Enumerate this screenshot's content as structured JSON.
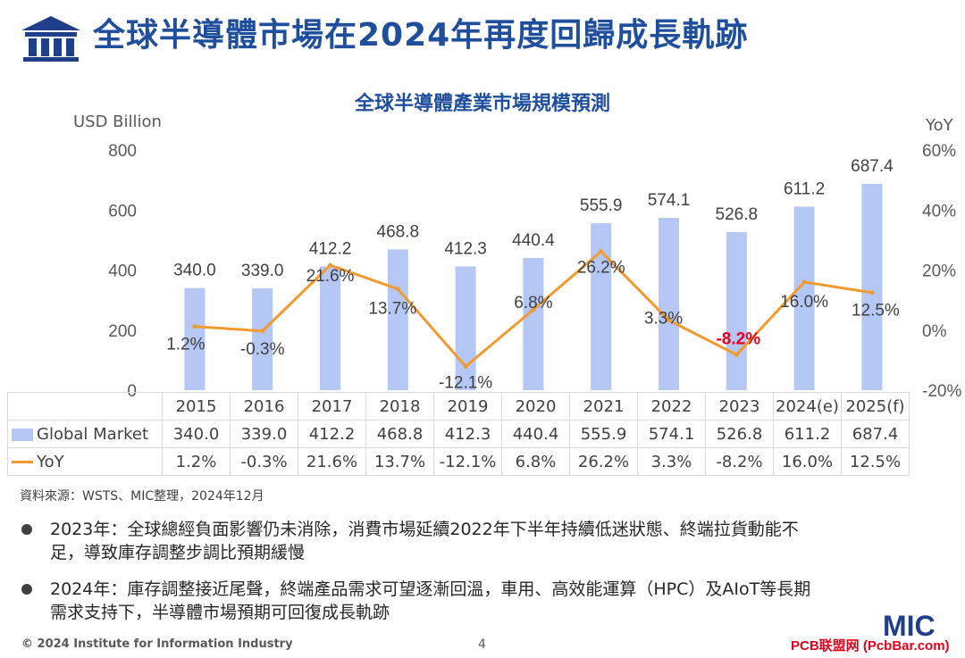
{
  "header": {
    "title": "全球半導體市場在2024年再度回歸成長軌跡"
  },
  "chart_data": {
    "type": "bar",
    "title": "全球半導體產業市場規模預測",
    "y_left_label": "USD Billion",
    "y_right_label": "YoY",
    "y_left_range": [
      0,
      800
    ],
    "y_left_ticks": [
      "0",
      "200",
      "400",
      "600",
      "800"
    ],
    "y_right_range": [
      -20,
      60
    ],
    "y_right_ticks": [
      "-20%",
      "0%",
      "20%",
      "40%",
      "60%"
    ],
    "categories": [
      "2015",
      "2016",
      "2017",
      "2018",
      "2019",
      "2020",
      "2021",
      "2022",
      "2023",
      "2024(e)",
      "2025(f)"
    ],
    "series": [
      {
        "name": "Global Market",
        "type": "bar",
        "axis": "left",
        "color": "#b4c7f5",
        "values": [
          340.0,
          339.0,
          412.2,
          468.8,
          412.3,
          440.4,
          555.9,
          574.1,
          526.8,
          611.2,
          687.4
        ],
        "labels": [
          "340.0",
          "339.0",
          "412.2",
          "468.8",
          "412.3",
          "440.4",
          "555.9",
          "574.1",
          "526.8",
          "611.2",
          "687.4"
        ]
      },
      {
        "name": "YoY",
        "type": "line",
        "axis": "right",
        "color": "#f39a2f",
        "values": [
          1.2,
          -0.3,
          21.6,
          13.7,
          -12.1,
          6.8,
          26.2,
          3.3,
          -8.2,
          16.0,
          12.5
        ],
        "labels": [
          "1.2%",
          "-0.3%",
          "21.6%",
          "13.7%",
          "-12.1%",
          "6.8%",
          "26.2%",
          "3.3%",
          "-8.2%",
          "16.0%",
          "12.5%"
        ],
        "highlight_color": "#e8001c"
      }
    ],
    "legend_placement": "data-table-below",
    "grid": false
  },
  "source": "資料來源：WSTS、MIC整理，2024年12月",
  "bullets": [
    {
      "line1": "2023年：全球總經負面影響仍未消除，消費市場延續2022年下半年持續低迷狀態、終端拉貨動能不",
      "line2": "足，導致庫存調整步調比預期緩慢"
    },
    {
      "line1": "2024年：庫存調整接近尾聲，終端產品需求可望逐漸回溫，車用、高效能運算（HPC）及AIoT等長期",
      "line2": "需求支持下，半導體市場預期可回復成長軌跡"
    }
  ],
  "footer": {
    "copyright": "© 2024 Institute for Information Industry",
    "page": "4",
    "brand": "MIC",
    "watermark": "PCB联盟网 (PcbBar.com)"
  },
  "colors": {
    "title": "#1f4e9c",
    "bar": "#b4c7f5",
    "line": "#f39a2f",
    "negative_highlight": "#e8001c"
  }
}
